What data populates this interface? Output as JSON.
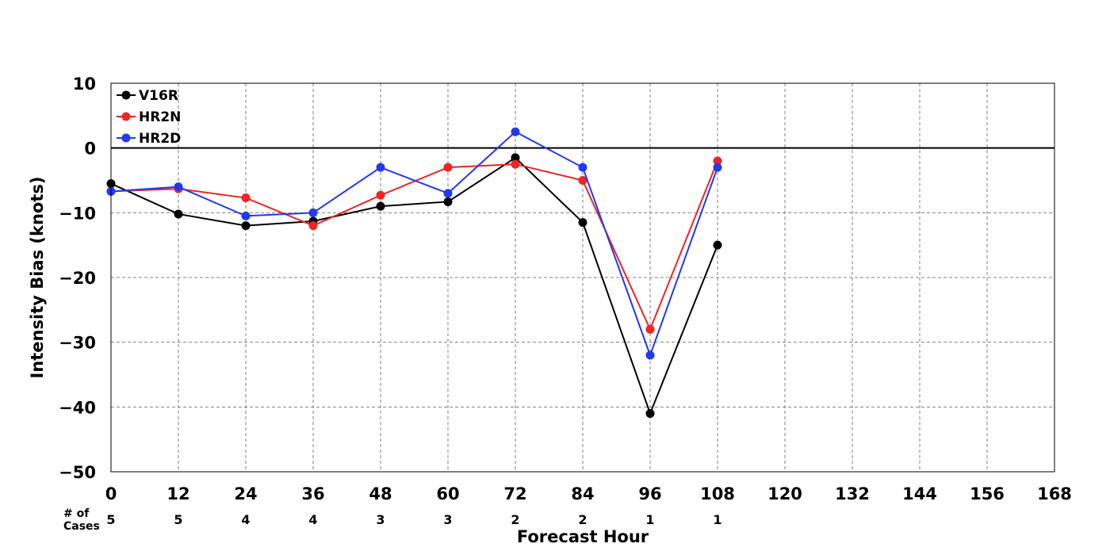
{
  "chart_data": {
    "type": "line",
    "xlabel": "Forecast Hour",
    "ylabel": "Intensity Bias (knots)",
    "xlim": [
      0,
      168
    ],
    "ylim": [
      -50,
      10
    ],
    "xticks": [
      0,
      12,
      24,
      36,
      48,
      60,
      72,
      84,
      96,
      108,
      120,
      132,
      144,
      156,
      168
    ],
    "yticks": [
      10,
      0,
      -10,
      -20,
      -30,
      -40,
      -50
    ],
    "ytick_labels": [
      "10",
      "0",
      "−10",
      "−20",
      "−30",
      "−40",
      "−50"
    ],
    "grid": true,
    "zero_line": true,
    "legend_position": "top-left",
    "x": [
      0,
      12,
      24,
      36,
      48,
      60,
      72,
      84,
      96,
      108
    ],
    "series": [
      {
        "name": "V16R",
        "color": "#000000",
        "values": [
          -5.5,
          -10.2,
          -12.0,
          -11.3,
          -9.0,
          -8.3,
          -1.5,
          -11.5,
          -41.0,
          -15.0
        ]
      },
      {
        "name": "HR2N",
        "color": "#f02424",
        "values": [
          -6.7,
          -6.3,
          -7.7,
          -12.0,
          -7.3,
          -3.0,
          -2.5,
          -5.0,
          -28.0,
          -2.0
        ]
      },
      {
        "name": "HR2D",
        "color": "#2438f0",
        "values": [
          -6.7,
          -6.0,
          -10.5,
          -10.0,
          -3.0,
          -7.0,
          2.5,
          -3.0,
          -32.0,
          -3.0
        ]
      }
    ],
    "cases_label_line1": "# of",
    "cases_label_line2": "Cases",
    "cases": [
      "5",
      "5",
      "4",
      "4",
      "3",
      "3",
      "2",
      "2",
      "1",
      "1"
    ]
  }
}
